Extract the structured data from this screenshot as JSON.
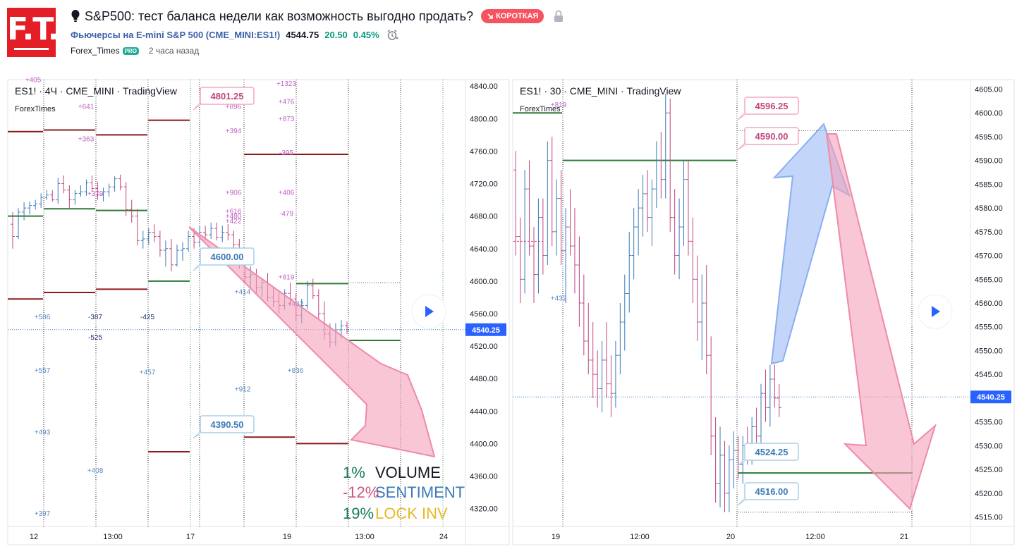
{
  "header": {
    "logo_text": "F.T.",
    "title": "S&P500: тест баланса недели как возможность выгодно продать?",
    "badge": "КОРОТКАЯ",
    "symbol": "Фьючерсы на E-mini S&P 500 (CME_MINI:ES1!)",
    "price": "4544.75",
    "change": "20.50",
    "change_pct": "0.45%",
    "author": "Forex_Times",
    "author_badge": "PRO",
    "time_ago": "2 часа назад",
    "colors": {
      "brand": "#e41e26",
      "short": "#f7525f",
      "positive": "#089981",
      "link": "#3a62a8"
    },
    "icons": [
      "bulb-icon",
      "short-arrow-icon",
      "lock-icon",
      "alarm-icon"
    ]
  },
  "chart_data": [
    {
      "type": "candlestick",
      "title": "ES1! · 4Ч · CME_MINI · TradingView",
      "subtitle": "ForexTimes",
      "ylim": [
        4298,
        4848
      ],
      "y_ticks": [
        "4840.00",
        "4800.00",
        "4760.00",
        "4720.00",
        "4680.00",
        "4640.00",
        "4600.00",
        "4560.00",
        "4520.00",
        "4480.00",
        "4440.00",
        "4400.00",
        "4360.00",
        "4320.00"
      ],
      "x_ticks": [
        "12",
        "13:00",
        "17",
        "19",
        "13:00",
        "24"
      ],
      "current_price": "4540.25",
      "callouts": [
        "4801.25",
        "4600.00",
        "4390.50"
      ],
      "profile_labels_pink": [
        "+405",
        "+641",
        "+363",
        "+379",
        "+896",
        "+394",
        "+906",
        "+616",
        "+480",
        "+422",
        "+1323",
        "+476",
        "+873",
        "-395",
        "+406",
        "-479",
        "+819"
      ],
      "profile_labels_blue": [
        "+586",
        "+557",
        "+493",
        "+408",
        "+397",
        "+457",
        "+414",
        "+912",
        "+432",
        "+836"
      ],
      "profile_labels_dark": [
        "-387",
        "-525",
        "-425"
      ],
      "overlay": [
        {
          "value": "1%",
          "label": "VOLUME"
        },
        {
          "value": "-12%",
          "label": "SENTIMENT"
        },
        {
          "value": "19%",
          "label": "LOCK INV"
        }
      ],
      "arrow": "down",
      "candles_ohlc": [
        [
          4670,
          4685,
          4640,
          4655
        ],
        [
          4655,
          4690,
          4652,
          4685
        ],
        [
          4685,
          4697,
          4675,
          4690
        ],
        [
          4690,
          4698,
          4682,
          4693
        ],
        [
          4693,
          4700,
          4688,
          4695
        ],
        [
          4695,
          4708,
          4690,
          4703
        ],
        [
          4703,
          4712,
          4700,
          4706
        ],
        [
          4706,
          4712,
          4698,
          4700
        ],
        [
          4700,
          4727,
          4695,
          4720
        ],
        [
          4720,
          4730,
          4708,
          4712
        ],
        [
          4712,
          4718,
          4690,
          4700
        ],
        [
          4700,
          4712,
          4694,
          4708
        ],
        [
          4708,
          4718,
          4704,
          4710
        ],
        [
          4710,
          4725,
          4705,
          4721
        ],
        [
          4721,
          4730,
          4710,
          4714
        ],
        [
          4714,
          4722,
          4700,
          4706
        ],
        [
          4706,
          4715,
          4698,
          4710
        ],
        [
          4710,
          4720,
          4704,
          4716
        ],
        [
          4716,
          4729,
          4710,
          4726
        ],
        [
          4726,
          4731,
          4712,
          4716
        ],
        [
          4716,
          4722,
          4680,
          4688
        ],
        [
          4688,
          4700,
          4672,
          4680
        ],
        [
          4680,
          4689,
          4644,
          4650
        ],
        [
          4650,
          4662,
          4640,
          4652
        ],
        [
          4652,
          4665,
          4645,
          4660
        ],
        [
          4660,
          4670,
          4648,
          4655
        ],
        [
          4655,
          4662,
          4630,
          4638
        ],
        [
          4638,
          4650,
          4618,
          4640
        ],
        [
          4640,
          4652,
          4612,
          4620
        ],
        [
          4620,
          4645,
          4618,
          4638
        ],
        [
          4638,
          4648,
          4625,
          4640
        ],
        [
          4640,
          4662,
          4636,
          4655
        ],
        [
          4655,
          4665,
          4640,
          4648
        ],
        [
          4648,
          4668,
          4642,
          4660
        ],
        [
          4660,
          4668,
          4650,
          4657
        ],
        [
          4657,
          4672,
          4652,
          4665
        ],
        [
          4665,
          4672,
          4650,
          4654
        ],
        [
          4654,
          4668,
          4648,
          4660
        ],
        [
          4660,
          4670,
          4650,
          4657
        ],
        [
          4657,
          4662,
          4640,
          4645
        ],
        [
          4645,
          4652,
          4615,
          4622
        ],
        [
          4622,
          4640,
          4598,
          4605
        ],
        [
          4605,
          4618,
          4590,
          4608
        ],
        [
          4608,
          4615,
          4585,
          4592
        ],
        [
          4592,
          4604,
          4580,
          4598
        ],
        [
          4598,
          4610,
          4575,
          4580
        ],
        [
          4580,
          4592,
          4568,
          4575
        ],
        [
          4575,
          4588,
          4560,
          4570
        ],
        [
          4570,
          4590,
          4565,
          4585
        ],
        [
          4585,
          4598,
          4570,
          4578
        ],
        [
          4578,
          4585,
          4550,
          4558
        ],
        [
          4558,
          4578,
          4548,
          4570
        ],
        [
          4570,
          4600,
          4565,
          4595
        ],
        [
          4595,
          4603,
          4578,
          4582
        ],
        [
          4582,
          4590,
          4552,
          4560
        ],
        [
          4560,
          4575,
          4528,
          4535
        ],
        [
          4535,
          4548,
          4518,
          4525
        ],
        [
          4525,
          4548,
          4520,
          4540
        ],
        [
          4540,
          4552,
          4530,
          4545
        ],
        [
          4545,
          4550,
          4535,
          4540
        ]
      ]
    },
    {
      "type": "candlestick",
      "title": "ES1! · 30 · CME_MINI · TradingView",
      "subtitle": "ForexTimes",
      "ylim": [
        4513,
        4607
      ],
      "y_ticks": [
        "4605.00",
        "4600.00",
        "4595.00",
        "4590.00",
        "4585.00",
        "4580.00",
        "4575.00",
        "4570.00",
        "4565.00",
        "4560.00",
        "4555.00",
        "4550.00",
        "4545.00",
        "4540.00",
        "4535.00",
        "4530.00",
        "4525.00",
        "4520.00",
        "4515.00"
      ],
      "x_ticks": [
        "19",
        "12:00",
        "20",
        "12:00",
        "21"
      ],
      "current_price": "4540.25",
      "callouts": [
        "4596.25",
        "4590.00",
        "4524.25",
        "4516.00"
      ],
      "profile_labels": [
        "+819",
        "+432"
      ],
      "arrows": [
        "up",
        "down"
      ],
      "candles_ohlc": [
        [
          4588,
          4592,
          4570,
          4574
        ],
        [
          4574,
          4578,
          4560,
          4565
        ],
        [
          4565,
          4588,
          4562,
          4584
        ],
        [
          4584,
          4590,
          4570,
          4572
        ],
        [
          4572,
          4576,
          4560,
          4566
        ],
        [
          4566,
          4582,
          4562,
          4578
        ],
        [
          4578,
          4582,
          4566,
          4570
        ],
        [
          4570,
          4594,
          4568,
          4590
        ],
        [
          4590,
          4595,
          4572,
          4575
        ],
        [
          4575,
          4586,
          4570,
          4582
        ],
        [
          4582,
          4588,
          4568,
          4571
        ],
        [
          4571,
          4580,
          4560,
          4576
        ],
        [
          4576,
          4584,
          4570,
          4572
        ],
        [
          4572,
          4580,
          4562,
          4568
        ],
        [
          4568,
          4574,
          4555,
          4560
        ],
        [
          4560,
          4566,
          4549,
          4552
        ],
        [
          4552,
          4560,
          4545,
          4548
        ],
        [
          4548,
          4556,
          4540,
          4545
        ],
        [
          4545,
          4550,
          4538,
          4542
        ],
        [
          4542,
          4552,
          4537,
          4548
        ],
        [
          4548,
          4556,
          4540,
          4543
        ],
        [
          4543,
          4549,
          4536,
          4541
        ],
        [
          4541,
          4552,
          4538,
          4549
        ],
        [
          4549,
          4560,
          4545,
          4556
        ],
        [
          4556,
          4566,
          4550,
          4562
        ],
        [
          4562,
          4575,
          4558,
          4570
        ],
        [
          4570,
          4580,
          4565,
          4576
        ],
        [
          4576,
          4584,
          4570,
          4580
        ],
        [
          4580,
          4587,
          4574,
          4583
        ],
        [
          4583,
          4588,
          4575,
          4578
        ],
        [
          4578,
          4586,
          4572,
          4584
        ],
        [
          4584,
          4594,
          4580,
          4590
        ],
        [
          4590,
          4596,
          4582,
          4586
        ],
        [
          4586,
          4604,
          4582,
          4600
        ],
        [
          4600,
          4603,
          4575,
          4578
        ],
        [
          4578,
          4584,
          4566,
          4570
        ],
        [
          4570,
          4582,
          4565,
          4576
        ],
        [
          4576,
          4590,
          4572,
          4586
        ],
        [
          4586,
          4590,
          4570,
          4573
        ],
        [
          4573,
          4578,
          4560,
          4565
        ],
        [
          4565,
          4570,
          4552,
          4556
        ],
        [
          4556,
          4566,
          4548,
          4560
        ],
        [
          4560,
          4568,
          4545,
          4549
        ],
        [
          4549,
          4553,
          4528,
          4532
        ],
        [
          4532,
          4536,
          4518,
          4522
        ],
        [
          4522,
          4534,
          4517,
          4528
        ],
        [
          4528,
          4531,
          4516,
          4520
        ],
        [
          4520,
          4530,
          4516,
          4527
        ],
        [
          4527,
          4533,
          4521,
          4529
        ],
        [
          4529,
          4532,
          4523,
          4526
        ],
        [
          4526,
          4532,
          4522,
          4530
        ],
        [
          4530,
          4534,
          4526,
          4529
        ],
        [
          4529,
          4536,
          4526,
          4534
        ],
        [
          4534,
          4538,
          4529,
          4532
        ],
        [
          4532,
          4543,
          4530,
          4541
        ],
        [
          4541,
          4546,
          4535,
          4538
        ],
        [
          4538,
          4547,
          4534,
          4544
        ],
        [
          4544,
          4547,
          4538,
          4540
        ],
        [
          4540,
          4543,
          4536,
          4538
        ]
      ]
    }
  ]
}
